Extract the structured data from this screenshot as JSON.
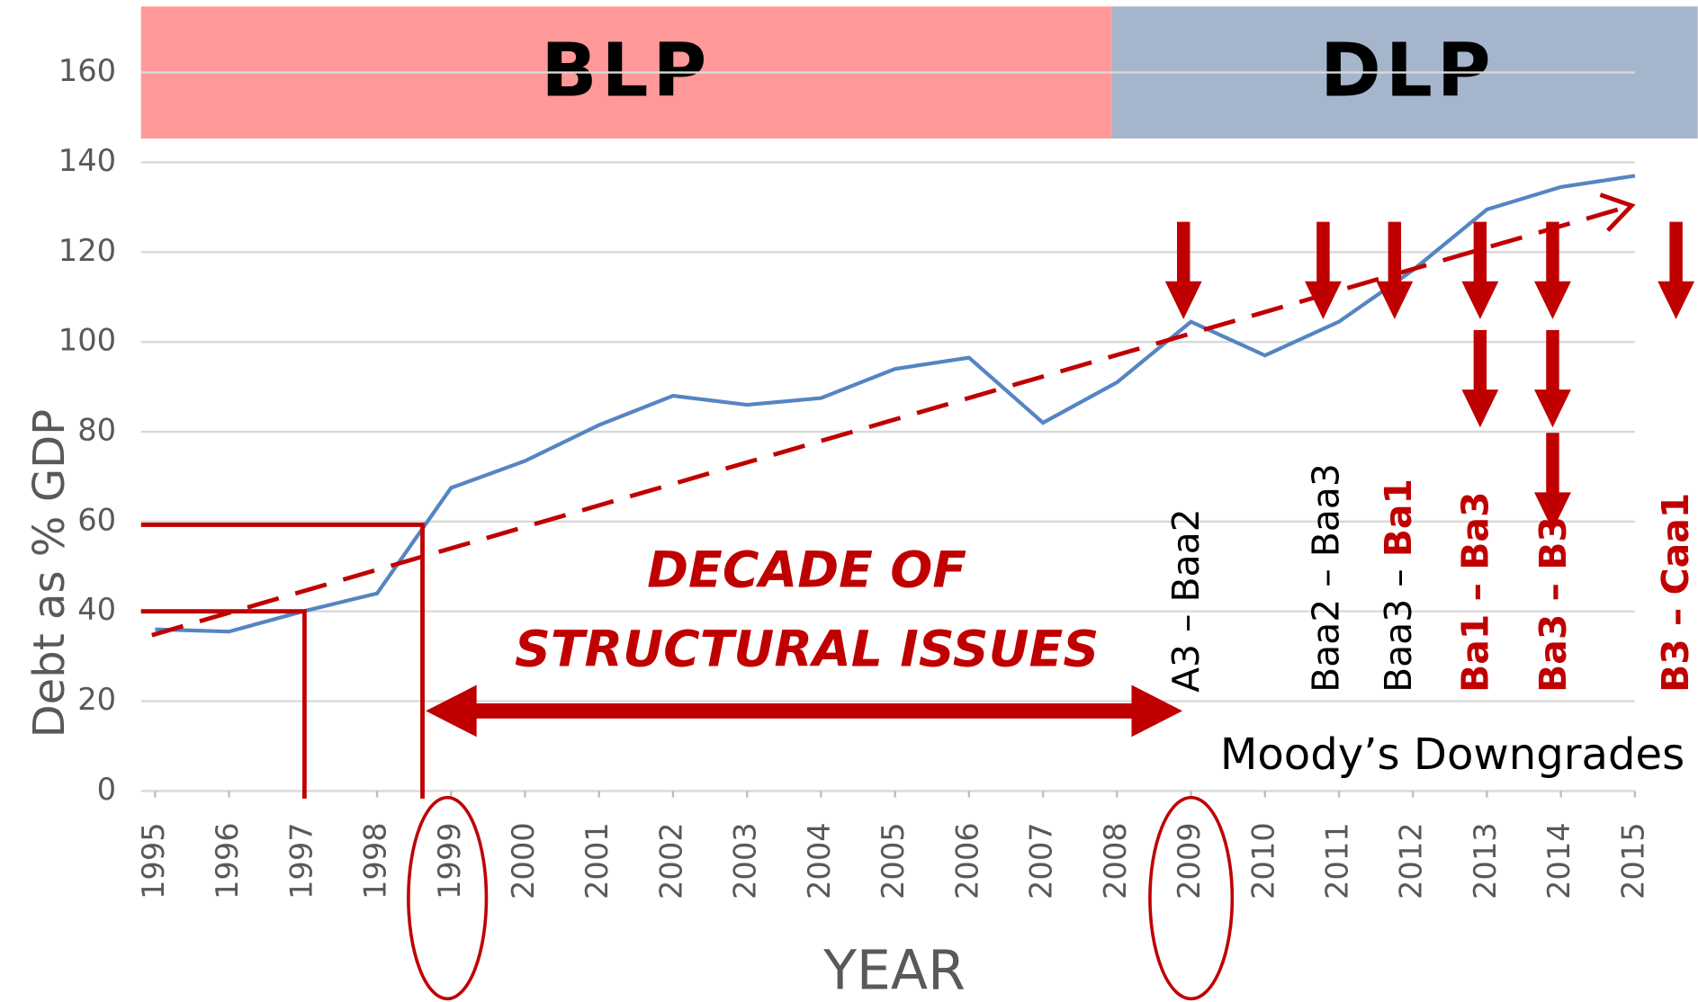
{
  "chart_data": {
    "type": "line",
    "ylabel": "Debt as % GDP",
    "xlabel": "YEAR",
    "x": [
      1995,
      1996,
      1997,
      1998,
      1999,
      2000,
      2001,
      2002,
      2003,
      2004,
      2005,
      2006,
      2007,
      2008,
      2009,
      2010,
      2011,
      2012,
      2013,
      2014,
      2015
    ],
    "series": [
      {
        "name": "Debt as % GDP",
        "color": "#5585c2",
        "values": [
          36,
          35.5,
          40,
          44,
          67.5,
          73.5,
          81.5,
          88,
          86,
          87.5,
          94,
          96.5,
          82,
          91,
          104.5,
          97,
          104.5,
          116,
          129.5,
          134.5,
          137
        ]
      }
    ],
    "xlim": [
      1995,
      2015
    ],
    "xticks": [
      1995,
      1996,
      1997,
      1998,
      1999,
      2000,
      2001,
      2002,
      2003,
      2004,
      2005,
      2006,
      2007,
      2008,
      2009,
      2010,
      2011,
      2012,
      2013,
      2014,
      2015
    ],
    "ylim": [
      0,
      160
    ],
    "yticks": [
      0,
      20,
      40,
      60,
      80,
      100,
      120,
      140,
      160
    ],
    "grid": true,
    "annotations": {
      "blp": "BLP",
      "dlp": "DLP",
      "decade": [
        "DECADE OF",
        "STRUCTURAL ISSUES"
      ],
      "downgrades_title": "Moody’s Downgrades",
      "ratings": [
        [
          "A3 – Baa2"
        ],
        [
          "Baa2 – Baa3"
        ],
        [
          "Baa3 – ",
          "Ba1"
        ],
        [
          "Ba1 – Ba3"
        ],
        [
          "Ba3 – B3"
        ],
        [
          "B3 – Caa1"
        ]
      ]
    }
  }
}
